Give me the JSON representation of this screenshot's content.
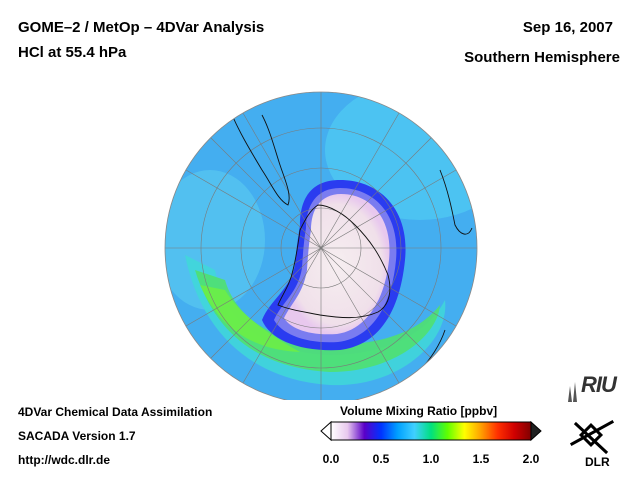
{
  "header": {
    "title": "GOME–2 / MetOp – 4DVar Analysis",
    "subtitle": "HCl at 55.4 hPa",
    "date": "Sep 16, 2007",
    "region": "Southern Hemisphere"
  },
  "footer": {
    "line1": "4DVar Chemical Data Assimilation",
    "line2": "SACADA Version 1.7",
    "line3": "http://wdc.dlr.de"
  },
  "colorbar": {
    "title": "Volume Mixing Ratio [ppbv]",
    "ticks": [
      "0.0",
      "0.5",
      "1.0",
      "1.5",
      "2.0"
    ],
    "colors": [
      "#ffffff",
      "#e8c8ee",
      "#5a00c8",
      "#0033ff",
      "#00a0ff",
      "#40d0ff",
      "#00e080",
      "#60ff00",
      "#ffff00",
      "#ffa000",
      "#ff3000",
      "#d00000",
      "#800000"
    ]
  },
  "logos": {
    "riu": "RIU",
    "dlr": "DLR"
  },
  "map_colors": {
    "ocean_blue": "#44aef0",
    "cyan": "#4fd6f0",
    "green": "#50e060",
    "vortex_edge": "#2a3cf0",
    "vortex_core": "#f4e8ec"
  }
}
